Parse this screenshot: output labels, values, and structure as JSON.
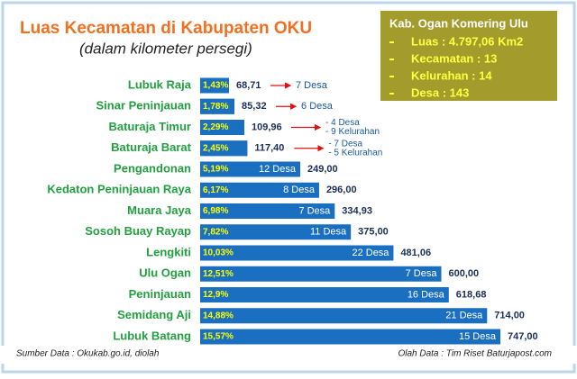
{
  "chart_data": {
    "type": "bar",
    "title": "Luas Kecamatan di Kabupaten OKU",
    "subtitle": "(dalam kilometer persegi)",
    "categories": [
      "Lubuk Raja",
      "Sinar Peninjauan",
      "Baturaja Timur",
      "Baturaja Barat",
      "Pengandonan",
      "Kedaton Peninjauan Raya",
      "Muara Jaya",
      "Sosoh Buay Rayap",
      "Lengkiti",
      "Ulu Ogan",
      "Peninjauan",
      "Semidang Aji",
      "Lubuk Batang"
    ],
    "values": [
      68.71,
      85.32,
      109.96,
      117.4,
      249,
      296,
      334.93,
      375,
      481.06,
      600,
      618.68,
      714,
      747
    ],
    "value_labels": [
      "68,71",
      "85,32",
      "109,96",
      "117,40",
      "249,00",
      "296,00",
      "334,93",
      "375,00",
      "481,06",
      "600,00",
      "618,68",
      "714,00",
      "747,00"
    ],
    "shares": [
      1.43,
      1.78,
      2.29,
      2.45,
      5.19,
      6.17,
      6.98,
      7.82,
      10.03,
      12.51,
      12.9,
      14.88,
      15.57
    ],
    "share_labels": [
      "1,43%",
      "1,78%",
      "2,29%",
      "2,45%",
      "5,19%",
      "6,17%",
      "6,98%",
      "7,82%",
      "10,03%",
      "12,51%",
      "12,9%",
      "14,88%",
      "15,57%"
    ],
    "villages": [
      [
        "7 Desa"
      ],
      [
        "6 Desa"
      ],
      [
        "- 4 Desa",
        "- 9 Kelurahan"
      ],
      [
        "- 7 Desa",
        "- 5 Kelurahan"
      ],
      [
        "12 Desa"
      ],
      [
        "8 Desa"
      ],
      [
        "7 Desa"
      ],
      [
        "11 Desa"
      ],
      [
        "22 Desa"
      ],
      [
        "7 Desa"
      ],
      [
        "16 Desa"
      ],
      [
        "21 Desa"
      ],
      [
        "15 Desa"
      ]
    ],
    "color": "#1a6fc0",
    "summary": {
      "title": "Kab. Ogan Komering Ulu",
      "items": [
        "Luas : 4.797,06 Km2",
        "Kecamatan : 13",
        "Kelurahan : 14",
        "Desa : 143"
      ]
    },
    "source": "Sumber Data : Okukab.go.id, diolah",
    "credit": "Olah Data : Tim Riset Baturjapost.com"
  }
}
